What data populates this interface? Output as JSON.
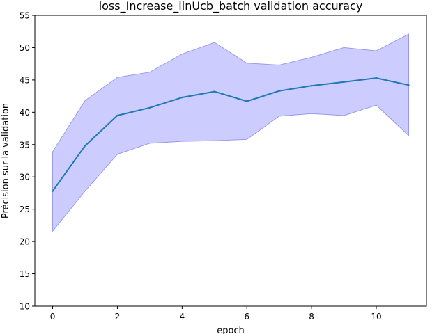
{
  "chart_data": {
    "type": "line",
    "title": "loss_Increase_linUcb_batch validation accuracy",
    "xlabel": "epoch",
    "ylabel": "Précision sur la validation",
    "xlim": [
      -0.55,
      11.55
    ],
    "ylim": [
      10,
      55
    ],
    "x_ticks": [
      "0",
      "2",
      "4",
      "6",
      "8",
      "10"
    ],
    "y_ticks": [
      "10",
      "15",
      "20",
      "25",
      "30",
      "35",
      "40",
      "45",
      "50",
      "55"
    ],
    "grid": false,
    "legend": "none",
    "x": [
      0,
      1,
      2,
      3,
      4,
      5,
      6,
      7,
      8,
      9,
      10,
      11
    ],
    "series": [
      {
        "values": [
          27.8,
          34.8,
          39.5,
          40.7,
          42.3,
          43.2,
          41.7,
          43.3,
          44.1,
          44.7,
          45.3,
          44.2
        ],
        "lower": [
          21.6,
          27.8,
          33.5,
          35.2,
          35.5,
          35.6,
          35.8,
          39.4,
          39.8,
          39.5,
          41.1,
          36.4
        ],
        "upper": [
          33.9,
          41.8,
          45.4,
          46.2,
          49.0,
          50.8,
          47.6,
          47.3,
          48.5,
          50.0,
          49.5,
          52.1
        ],
        "line_color": "#1f77b4",
        "band_color": "#ccccff",
        "band_edge_color": "#9999ee"
      }
    ]
  }
}
